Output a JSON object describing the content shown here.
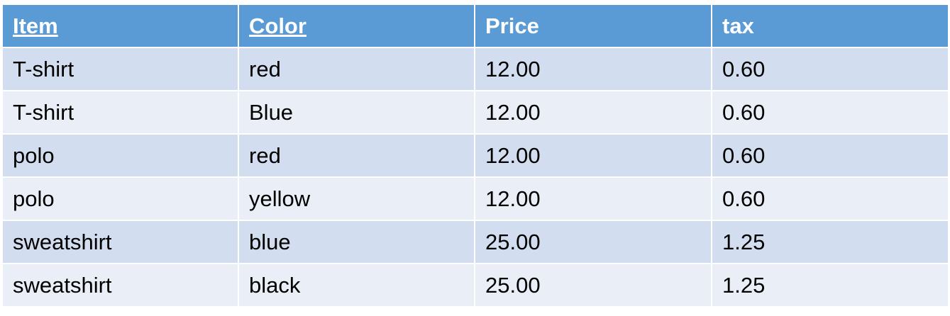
{
  "colors": {
    "header_bg": "#5b9bd5",
    "header_text": "#ffffff",
    "row_odd_bg": "#d2deef",
    "row_even_bg": "#eaeff7"
  },
  "table": {
    "headers": [
      "Item",
      "Color",
      "Price",
      "tax"
    ],
    "rows": [
      [
        "T-shirt",
        "red",
        "12.00",
        "0.60"
      ],
      [
        "T-shirt",
        "Blue",
        "12.00",
        "0.60"
      ],
      [
        "polo",
        "red",
        "12.00",
        "0.60"
      ],
      [
        "polo",
        "yellow",
        "12.00",
        "0.60"
      ],
      [
        "sweatshirt",
        "blue",
        "25.00",
        "1.25"
      ],
      [
        "sweatshirt",
        "black",
        "25.00",
        "1.25"
      ]
    ]
  }
}
